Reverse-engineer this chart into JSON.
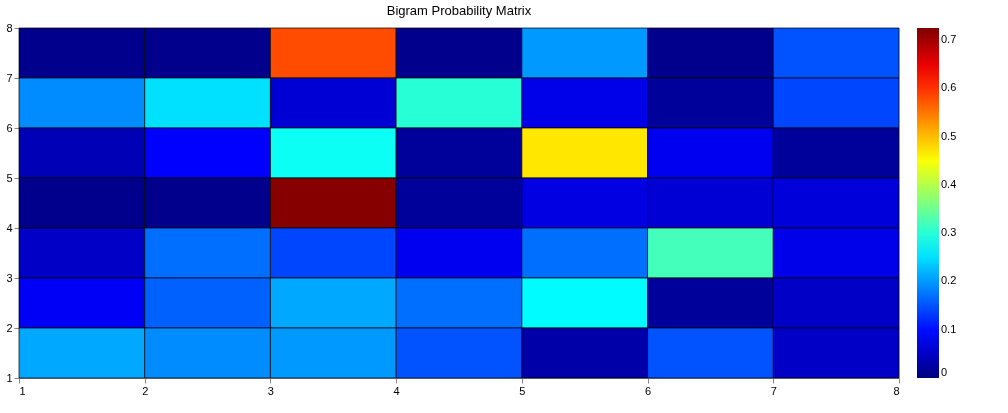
{
  "chart_data": {
    "type": "heatmap",
    "title": "Bigram Probability Matrix",
    "cells": [
      [
        0.01,
        0.01,
        0.58,
        0.01,
        0.2,
        0.01,
        0.15
      ],
      [
        0.19,
        0.25,
        0.06,
        0.3,
        0.075,
        0.02,
        0.14
      ],
      [
        0.04,
        0.09,
        0.28,
        0.02,
        0.47,
        0.08,
        0.02
      ],
      [
        0.01,
        0.01,
        0.72,
        0.02,
        0.07,
        0.06,
        0.065
      ],
      [
        0.05,
        0.17,
        0.14,
        0.08,
        0.17,
        0.32,
        0.075
      ],
      [
        0.085,
        0.16,
        0.21,
        0.17,
        0.27,
        0.02,
        0.05
      ],
      [
        0.21,
        0.19,
        0.2,
        0.15,
        0.03,
        0.15,
        0.05
      ]
    ],
    "xlim": [
      1,
      8
    ],
    "xticks": [
      1,
      2,
      3,
      4,
      5,
      6,
      7,
      8
    ],
    "ylim": [
      1,
      8
    ],
    "yticks": [
      1,
      2,
      3,
      4,
      5,
      6,
      7,
      8
    ],
    "clim": [
      0,
      0.725
    ],
    "cticks": [
      0,
      0.1,
      0.2,
      0.3,
      0.4,
      0.5,
      0.6,
      0.7
    ]
  }
}
